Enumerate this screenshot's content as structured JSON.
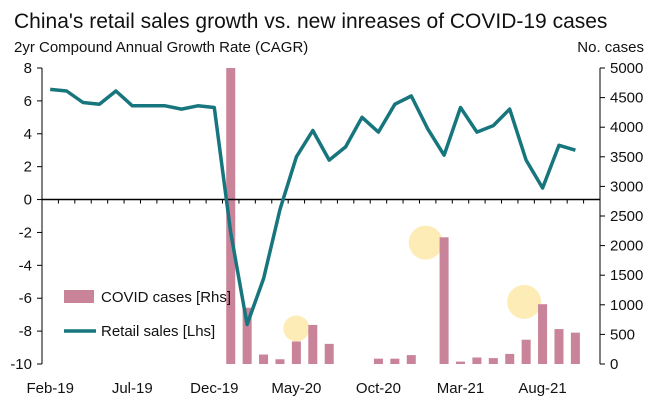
{
  "chart_data": {
    "type": "bar+line",
    "title": "China's retail sales growth vs. new inreases of COVID-19 cases",
    "subtitle": "2yr Compound Annual Growth Rate (CAGR)",
    "y2label": "No. cases",
    "x_ticks": [
      "Feb-19",
      "Jul-19",
      "Dec-19",
      "May-20",
      "Oct-20",
      "Mar-21",
      "Aug-21"
    ],
    "y_left": {
      "min": -10,
      "max": 8,
      "ticks": [
        8,
        6,
        4,
        2,
        0,
        -2,
        -4,
        -6,
        -8,
        -10
      ]
    },
    "y_right": {
      "min": 0,
      "max": 5000,
      "ticks": [
        5000,
        4500,
        4000,
        3500,
        3000,
        2500,
        2000,
        1500,
        1000,
        500,
        0
      ]
    },
    "months": [
      "2019-02",
      "2019-03",
      "2019-04",
      "2019-05",
      "2019-06",
      "2019-07",
      "2019-08",
      "2019-09",
      "2019-10",
      "2019-11",
      "2019-12",
      "2020-01",
      "2020-02",
      "2020-03",
      "2020-04",
      "2020-05",
      "2020-06",
      "2020-07",
      "2020-08",
      "2020-09",
      "2020-10",
      "2020-11",
      "2020-12",
      "2021-01",
      "2021-02",
      "2021-03",
      "2021-04",
      "2021-05",
      "2021-06",
      "2021-07",
      "2021-08",
      "2021-09",
      "2021-10",
      "2021-11"
    ],
    "series": [
      {
        "name": "COVID cases [Rhs]",
        "axis": "right",
        "color": "#c9849a",
        "type": "bar",
        "values": [
          null,
          null,
          null,
          null,
          null,
          null,
          null,
          null,
          null,
          null,
          null,
          5000,
          950,
          160,
          80,
          380,
          660,
          340,
          0,
          0,
          90,
          90,
          150,
          0,
          2140,
          40,
          110,
          100,
          170,
          410,
          1010,
          590,
          530,
          null
        ]
      },
      {
        "name": "Retail sales [Lhs]",
        "axis": "left",
        "color": "#17767d",
        "type": "line",
        "values": [
          6.7,
          6.6,
          5.9,
          5.8,
          6.6,
          5.7,
          5.7,
          5.7,
          5.5,
          5.7,
          5.6,
          -2.0,
          -7.6,
          -4.8,
          -0.6,
          2.6,
          4.2,
          2.4,
          3.2,
          5.0,
          4.1,
          5.8,
          6.3,
          4.3,
          2.7,
          5.6,
          4.1,
          4.5,
          5.5,
          2.4,
          0.7,
          3.3,
          3.0,
          null
        ]
      }
    ],
    "highlights": [
      {
        "month": "2020-05",
        "cases": 600
      },
      {
        "month": "2021-01",
        "cases": 2050
      },
      {
        "month": "2021-07",
        "cases": 1050
      }
    ],
    "legend_position": "bottom-left",
    "colors": {
      "bars": "#c9849a",
      "line": "#17767d",
      "highlight": "#fde9a8"
    }
  }
}
